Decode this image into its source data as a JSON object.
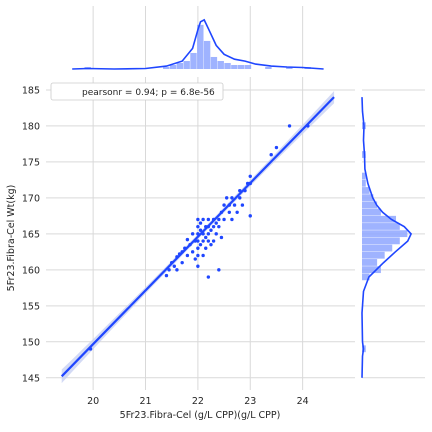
{
  "chart_data": {
    "type": "scatter",
    "title": "",
    "xlabel": "5Fr23.Fibra-Cel (g/L CPP)(g/L CPP)",
    "ylabel": "5Fr23.Fibra-Cel Wt(kg)",
    "xlim": [
      19.1,
      25.0
    ],
    "ylim": [
      143.3,
      186.8
    ],
    "x_ticks": [
      20,
      21,
      22,
      23,
      24
    ],
    "y_ticks": [
      145,
      150,
      155,
      160,
      165,
      170,
      175,
      180,
      185
    ],
    "grid": true,
    "legend_position": "top-left",
    "annotation": "pearsonr = 0.94; p = 6.8e-56",
    "regression": {
      "x0": 19.4,
      "y0": 145.2,
      "x1": 24.6,
      "y1": 184.0
    },
    "colors": {
      "series": "#1f46ff",
      "band": "#c4cdf2",
      "grid": "#d9d9d9",
      "hist": "#8ea6ff"
    },
    "points": [
      {
        "x": 19.95,
        "y": 149.0
      },
      {
        "x": 21.4,
        "y": 159.2
      },
      {
        "x": 21.45,
        "y": 160.0
      },
      {
        "x": 21.5,
        "y": 161.0
      },
      {
        "x": 21.55,
        "y": 160.5
      },
      {
        "x": 21.6,
        "y": 161.8
      },
      {
        "x": 21.65,
        "y": 162.2
      },
      {
        "x": 21.7,
        "y": 162.5
      },
      {
        "x": 21.75,
        "y": 163.0
      },
      {
        "x": 21.8,
        "y": 162.0
      },
      {
        "x": 21.85,
        "y": 163.5
      },
      {
        "x": 21.9,
        "y": 162.5
      },
      {
        "x": 21.95,
        "y": 164.0
      },
      {
        "x": 21.6,
        "y": 160.0
      },
      {
        "x": 21.7,
        "y": 161.0
      },
      {
        "x": 21.8,
        "y": 164.2
      },
      {
        "x": 21.9,
        "y": 165.0
      },
      {
        "x": 21.95,
        "y": 161.5
      },
      {
        "x": 22.0,
        "y": 163.0
      },
      {
        "x": 22.0,
        "y": 164.0
      },
      {
        "x": 22.0,
        "y": 165.0
      },
      {
        "x": 22.0,
        "y": 166.0
      },
      {
        "x": 22.0,
        "y": 160.5
      },
      {
        "x": 22.0,
        "y": 162.0
      },
      {
        "x": 22.0,
        "y": 167.0
      },
      {
        "x": 22.05,
        "y": 163.5
      },
      {
        "x": 22.05,
        "y": 165.5
      },
      {
        "x": 22.05,
        "y": 166.5
      },
      {
        "x": 22.1,
        "y": 164.0
      },
      {
        "x": 22.1,
        "y": 165.0
      },
      {
        "x": 22.1,
        "y": 162.0
      },
      {
        "x": 22.1,
        "y": 167.0
      },
      {
        "x": 22.15,
        "y": 164.5
      },
      {
        "x": 22.15,
        "y": 166.0
      },
      {
        "x": 22.15,
        "y": 163.0
      },
      {
        "x": 22.2,
        "y": 165.0
      },
      {
        "x": 22.2,
        "y": 166.0
      },
      {
        "x": 22.2,
        "y": 164.0
      },
      {
        "x": 22.2,
        "y": 167.0
      },
      {
        "x": 22.2,
        "y": 159.0
      },
      {
        "x": 22.25,
        "y": 165.5
      },
      {
        "x": 22.25,
        "y": 163.5
      },
      {
        "x": 22.3,
        "y": 166.0
      },
      {
        "x": 22.3,
        "y": 167.0
      },
      {
        "x": 22.3,
        "y": 164.0
      },
      {
        "x": 22.35,
        "y": 166.5
      },
      {
        "x": 22.35,
        "y": 165.0
      },
      {
        "x": 22.4,
        "y": 167.0
      },
      {
        "x": 22.4,
        "y": 166.0
      },
      {
        "x": 22.4,
        "y": 160.0
      },
      {
        "x": 22.45,
        "y": 164.5
      },
      {
        "x": 22.45,
        "y": 168.0
      },
      {
        "x": 22.5,
        "y": 167.0
      },
      {
        "x": 22.5,
        "y": 169.0
      },
      {
        "x": 22.55,
        "y": 170.0
      },
      {
        "x": 22.6,
        "y": 169.0
      },
      {
        "x": 22.6,
        "y": 168.0
      },
      {
        "x": 22.65,
        "y": 170.0
      },
      {
        "x": 22.65,
        "y": 167.0
      },
      {
        "x": 22.7,
        "y": 169.0
      },
      {
        "x": 22.75,
        "y": 168.0
      },
      {
        "x": 22.8,
        "y": 170.0
      },
      {
        "x": 22.8,
        "y": 171.0
      },
      {
        "x": 22.85,
        "y": 169.0
      },
      {
        "x": 22.9,
        "y": 171.0
      },
      {
        "x": 22.95,
        "y": 172.0
      },
      {
        "x": 23.0,
        "y": 173.0
      },
      {
        "x": 23.0,
        "y": 172.0
      },
      {
        "x": 23.0,
        "y": 167.5
      },
      {
        "x": 23.4,
        "y": 176.0
      },
      {
        "x": 23.5,
        "y": 177.0
      },
      {
        "x": 23.75,
        "y": 180.0
      },
      {
        "x": 24.1,
        "y": 180.0
      }
    ],
    "x_hist": {
      "bin_width": 0.13,
      "bins": [
        {
          "x": 19.9,
          "count": 1
        },
        {
          "x": 21.4,
          "count": 1
        },
        {
          "x": 21.53,
          "count": 2
        },
        {
          "x": 21.66,
          "count": 3
        },
        {
          "x": 21.79,
          "count": 4
        },
        {
          "x": 21.92,
          "count": 8
        },
        {
          "x": 22.05,
          "count": 22
        },
        {
          "x": 22.18,
          "count": 14
        },
        {
          "x": 22.31,
          "count": 6
        },
        {
          "x": 22.44,
          "count": 4
        },
        {
          "x": 22.57,
          "count": 3
        },
        {
          "x": 22.7,
          "count": 2
        },
        {
          "x": 22.83,
          "count": 2
        },
        {
          "x": 22.96,
          "count": 2
        },
        {
          "x": 23.35,
          "count": 1
        },
        {
          "x": 23.75,
          "count": 1
        },
        {
          "x": 24.1,
          "count": 1
        }
      ]
    },
    "x_kde": [
      [
        19.6,
        0.0
      ],
      [
        19.9,
        0.01
      ],
      [
        20.4,
        0.0
      ],
      [
        21.0,
        0.01
      ],
      [
        21.4,
        0.06
      ],
      [
        21.7,
        0.16
      ],
      [
        21.9,
        0.42
      ],
      [
        22.0,
        0.8
      ],
      [
        22.05,
        0.96
      ],
      [
        22.12,
        1.0
      ],
      [
        22.2,
        0.82
      ],
      [
        22.35,
        0.48
      ],
      [
        22.5,
        0.3
      ],
      [
        22.7,
        0.2
      ],
      [
        22.9,
        0.16
      ],
      [
        23.1,
        0.1
      ],
      [
        23.4,
        0.06
      ],
      [
        23.7,
        0.04
      ],
      [
        24.0,
        0.03
      ],
      [
        24.4,
        0.0
      ]
    ],
    "y_hist": {
      "bin_width": 1.0,
      "bins": [
        {
          "y": 149.0,
          "count": 1
        },
        {
          "y": 159.0,
          "count": 2
        },
        {
          "y": 160.0,
          "count": 5
        },
        {
          "y": 161.0,
          "count": 4
        },
        {
          "y": 162.0,
          "count": 6
        },
        {
          "y": 163.0,
          "count": 8
        },
        {
          "y": 164.0,
          "count": 10
        },
        {
          "y": 165.0,
          "count": 12
        },
        {
          "y": 166.0,
          "count": 10
        },
        {
          "y": 167.0,
          "count": 9
        },
        {
          "y": 168.0,
          "count": 5
        },
        {
          "y": 169.0,
          "count": 4
        },
        {
          "y": 170.0,
          "count": 3
        },
        {
          "y": 171.0,
          "count": 2
        },
        {
          "y": 172.0,
          "count": 1
        },
        {
          "y": 173.0,
          "count": 1
        },
        {
          "y": 176.0,
          "count": 1
        },
        {
          "y": 180.0,
          "count": 1
        }
      ]
    },
    "y_kde": [
      [
        145.0,
        0.0
      ],
      [
        148.0,
        0.01
      ],
      [
        149.0,
        0.03
      ],
      [
        150.0,
        0.01
      ],
      [
        154.0,
        0.0
      ],
      [
        157.0,
        0.03
      ],
      [
        159.0,
        0.14
      ],
      [
        161.0,
        0.44
      ],
      [
        162.5,
        0.68
      ],
      [
        164.0,
        0.93
      ],
      [
        165.0,
        1.0
      ],
      [
        166.0,
        0.86
      ],
      [
        167.0,
        0.6
      ],
      [
        168.0,
        0.42
      ],
      [
        169.0,
        0.3
      ],
      [
        170.0,
        0.22
      ],
      [
        172.0,
        0.12
      ],
      [
        174.0,
        0.06
      ],
      [
        176.0,
        0.05
      ],
      [
        178.0,
        0.03
      ],
      [
        180.0,
        0.04
      ],
      [
        182.0,
        0.01
      ],
      [
        184.0,
        0.0
      ]
    ]
  }
}
